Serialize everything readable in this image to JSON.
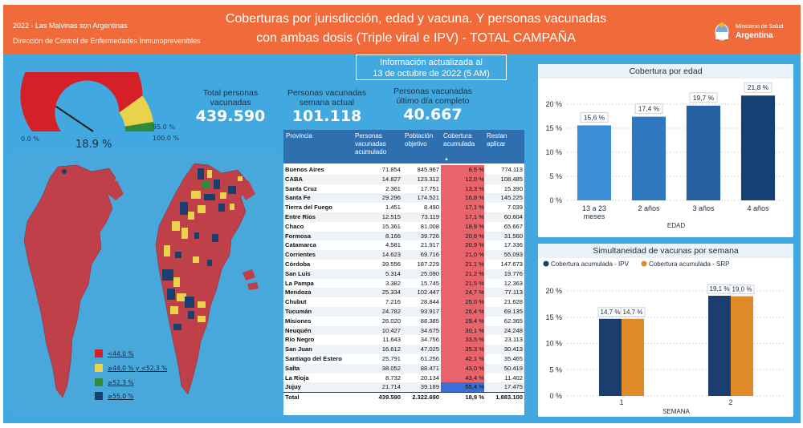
{
  "header": {
    "line1": "2022 - Las Malvinas son Argentinas",
    "line2": "Dirección de Control de Enfermedades Inmunoprevenibles",
    "title_line1": "Coberturas por jurisdicción, edad y vacuna. Y personas vacunadas",
    "title_line2": "con ambas dosis (Triple viral e IPV) - TOTAL CAMPAÑA",
    "ministry_line1": "Ministerio de Salud",
    "ministry_line2": "Argentina"
  },
  "info": {
    "line1": "Información actualizada al",
    "line2": "13 de octubre de 2022 (5 AM)"
  },
  "kpis": [
    {
      "label_line1": "Total personas",
      "label_line2": "vacunadas",
      "value": "439.590"
    },
    {
      "label_line1": "Personas vacunadas",
      "label_line2": "semana actual",
      "value": "101.118"
    },
    {
      "label_line1": "Personas vacunadas",
      "label_line2": "último día completo",
      "value": "40.667"
    }
  ],
  "gauge": {
    "value": 18.9,
    "value_label": "18.9 %",
    "min_label": "0.0 %",
    "t1_label": "95.0 %",
    "max_label": "100.0 %",
    "colors": {
      "red": "#d52027",
      "yellow": "#e8d34a",
      "green": "#2f8a3c"
    }
  },
  "legend": {
    "items": [
      {
        "label": "<44,0 %",
        "color": "#d52027"
      },
      {
        "label": "≥44,0 %  y <52,3 %",
        "color": "#e8d34a"
      },
      {
        "label": "≥52,3 %",
        "color": "#2f8a3c"
      },
      {
        "label": "≥55,0 %",
        "color": "#1a3f6e"
      }
    ]
  },
  "table": {
    "headers": [
      "Provincia",
      "Personas vacunadas acumulado",
      "Población objetivo",
      "Cobertura acumulada",
      "Restan aplicar"
    ],
    "rows": [
      [
        "Buenos Aires",
        "71.854",
        "845.967",
        "8,5 %",
        "774.113"
      ],
      [
        "CABA",
        "14.827",
        "123.312",
        "12,0 %",
        "108.485"
      ],
      [
        "Santa Cruz",
        "2.361",
        "17.751",
        "13,3 %",
        "15.390"
      ],
      [
        "Santa Fe",
        "29.296",
        "174.521",
        "16,8 %",
        "145.225"
      ],
      [
        "Tierra del Fuego",
        "1.451",
        "8.490",
        "17,1 %",
        "7.039"
      ],
      [
        "Entre Ríos",
        "12.515",
        "73.119",
        "17,1 %",
        "60.604"
      ],
      [
        "Chaco",
        "15.361",
        "81.008",
        "18,9 %",
        "65.667"
      ],
      [
        "Formosa",
        "8.166",
        "39.726",
        "20,6 %",
        "31.560"
      ],
      [
        "Catamarca",
        "4.581",
        "21.917",
        "20,9 %",
        "17.336"
      ],
      [
        "Corrientes",
        "14.623",
        "69.716",
        "21,0 %",
        "55.093"
      ],
      [
        "Córdoba",
        "39.556",
        "187.229",
        "21,1 %",
        "147.673"
      ],
      [
        "San Luis",
        "5.314",
        "25.090",
        "21,2 %",
        "19.776"
      ],
      [
        "La Pampa",
        "3.382",
        "15.745",
        "21,5 %",
        "12.363"
      ],
      [
        "Mendoza",
        "25.334",
        "102.447",
        "24,7 %",
        "77.113"
      ],
      [
        "Chubut",
        "7.216",
        "28.844",
        "25,0 %",
        "21.628"
      ],
      [
        "Tucumán",
        "24.782",
        "93.917",
        "26,4 %",
        "69.135"
      ],
      [
        "Misiones",
        "26.020",
        "88.385",
        "29,4 %",
        "62.365"
      ],
      [
        "Neuquén",
        "10.427",
        "34.675",
        "30,1 %",
        "24.248"
      ],
      [
        "Río Negro",
        "11.643",
        "34.756",
        "33,5 %",
        "23.113"
      ],
      [
        "San Juan",
        "16.612",
        "47.025",
        "35,3 %",
        "30.413"
      ],
      [
        "Santiago del Estero",
        "25.791",
        "61.256",
        "42,1 %",
        "35.465"
      ],
      [
        "Salta",
        "38.052",
        "88.471",
        "43,0 %",
        "50.419"
      ],
      [
        "La Rioja",
        "8.732",
        "20.134",
        "43,4 %",
        "11.402"
      ],
      [
        "Jujuy",
        "21.714",
        "39.189",
        "55,4 %",
        "17.475"
      ]
    ],
    "total": [
      "Total",
      "439.590",
      "2.322.690",
      "18,9 %",
      "1.883.100"
    ]
  },
  "chart_data": [
    {
      "type": "bar",
      "title": "Cobertura por edad",
      "xlabel": "EDAD",
      "categories": [
        "13 a 23 meses",
        "2 años",
        "3 años",
        "4 años"
      ],
      "values": [
        15.6,
        17.4,
        19.7,
        21.8
      ],
      "value_labels": [
        "15,6 %",
        "17,4 %",
        "19,7 %",
        "21,8 %"
      ],
      "yticks": [
        "20 %",
        "15 %",
        "10 %",
        "5 %",
        "0 %"
      ],
      "ylim": [
        0,
        22
      ],
      "colors": [
        "#3a8fd6",
        "#2f78c0",
        "#24609f",
        "#163f74"
      ]
    },
    {
      "type": "bar",
      "title": "Simultaneidad de vacunas por semana",
      "xlabel": "SEMANA",
      "categories": [
        "1",
        "2"
      ],
      "series": [
        {
          "name": "Cobertura acumulada - IPV",
          "values": [
            14.7,
            19.1
          ],
          "labels": [
            "14,7 %",
            "19,1 %"
          ],
          "color": "#1a3f6e"
        },
        {
          "name": "Cobertura acumulada - SRP",
          "values": [
            14.7,
            19.0
          ],
          "labels": [
            "14,7 %",
            "19,0 %"
          ],
          "color": "#e08a2a"
        }
      ],
      "yticks": [
        "20 %",
        "15 %",
        "10 %",
        "5 %",
        "0 %"
      ],
      "ylim": [
        0,
        22
      ]
    }
  ]
}
